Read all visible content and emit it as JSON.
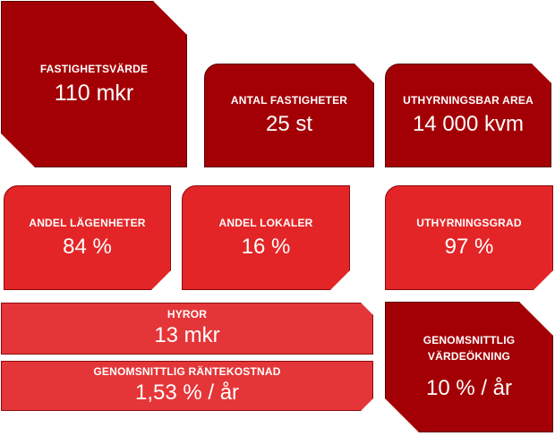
{
  "tiles": {
    "fastighetsvarde": {
      "label": "FASTIGHETSVÄRDE",
      "value": "110 mkr"
    },
    "antal_fastigheter": {
      "label": "ANTAL FASTIGHETER",
      "value": "25 st"
    },
    "uthyrningsbar_area": {
      "label": "UTHYRNINGSBAR AREA",
      "value": "14 000 kvm"
    },
    "andel_lagenheter": {
      "label": "ANDEL LÄGENHETER",
      "value": "84 %"
    },
    "andel_lokaler": {
      "label": "ANDEL LOKALER",
      "value": "16 %"
    },
    "uthyrningsgrad": {
      "label": "UTHYRNINGSGRAD",
      "value": "97 %"
    },
    "hyror": {
      "label": "HYROR",
      "value": "13 mkr"
    },
    "rantekostnad": {
      "label": "GENOMSNITTLIG RÄNTEKOSTNAD",
      "value": "1,53 % / år"
    },
    "vardeokning": {
      "label_line1": "GENOMSNITTLIG",
      "label_line2": "VÄRDEÖKNING",
      "value": "10 % / år"
    }
  },
  "colors": {
    "dark_red": "#a30005",
    "bright_red": "#e32527",
    "light_red": "#e43638"
  }
}
